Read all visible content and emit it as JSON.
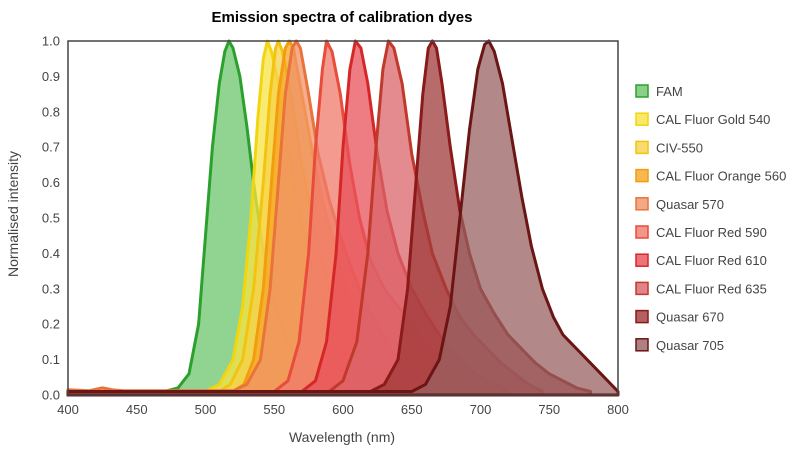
{
  "chart_data": {
    "type": "area",
    "title": "Emission spectra of calibration dyes",
    "xlabel": "Wavelength (nm)",
    "ylabel": "Normalised intensity",
    "xlim": [
      400,
      800
    ],
    "ylim": [
      0,
      1.0
    ],
    "xticks": [
      "400",
      "450",
      "500",
      "550",
      "600",
      "650",
      "700",
      "750",
      "800"
    ],
    "yticks": [
      "0.0",
      "0.1",
      "0.2",
      "0.3",
      "0.4",
      "0.5",
      "0.6",
      "0.7",
      "0.8",
      "0.9",
      "1.0"
    ],
    "grid": false,
    "legend_position": "right",
    "series": [
      {
        "name": "FAM",
        "stroke": "#2ca02c",
        "fill": "#6cc56c",
        "points": [
          [
            400,
            0.01
          ],
          [
            470,
            0.01
          ],
          [
            480,
            0.02
          ],
          [
            488,
            0.06
          ],
          [
            495,
            0.2
          ],
          [
            500,
            0.45
          ],
          [
            505,
            0.7
          ],
          [
            510,
            0.88
          ],
          [
            514,
            0.97
          ],
          [
            517,
            1.0
          ],
          [
            520,
            0.98
          ],
          [
            525,
            0.9
          ],
          [
            530,
            0.76
          ],
          [
            535,
            0.6
          ],
          [
            540,
            0.46
          ],
          [
            545,
            0.34
          ],
          [
            550,
            0.26
          ],
          [
            555,
            0.2
          ],
          [
            560,
            0.15
          ],
          [
            570,
            0.09
          ],
          [
            580,
            0.05
          ],
          [
            590,
            0.03
          ],
          [
            600,
            0.01
          ]
        ]
      },
      {
        "name": "CAL Fluor Gold 540",
        "stroke": "#f2d50f",
        "fill": "#f7e443",
        "points": [
          [
            400,
            0.01
          ],
          [
            500,
            0.01
          ],
          [
            510,
            0.03
          ],
          [
            520,
            0.1
          ],
          [
            527,
            0.25
          ],
          [
            533,
            0.5
          ],
          [
            538,
            0.78
          ],
          [
            542,
            0.95
          ],
          [
            545,
            1.0
          ],
          [
            548,
            0.97
          ],
          [
            553,
            0.88
          ],
          [
            560,
            0.7
          ],
          [
            570,
            0.48
          ],
          [
            580,
            0.33
          ],
          [
            590,
            0.23
          ],
          [
            600,
            0.16
          ],
          [
            610,
            0.11
          ],
          [
            620,
            0.07
          ],
          [
            630,
            0.04
          ],
          [
            640,
            0.02
          ],
          [
            650,
            0.01
          ]
        ]
      },
      {
        "name": "CIV-550",
        "stroke": "#f2c40f",
        "fill": "#f5d24a",
        "points": [
          [
            400,
            0.01
          ],
          [
            510,
            0.01
          ],
          [
            518,
            0.03
          ],
          [
            527,
            0.1
          ],
          [
            535,
            0.3
          ],
          [
            542,
            0.6
          ],
          [
            547,
            0.85
          ],
          [
            551,
            0.98
          ],
          [
            553,
            1.0
          ],
          [
            556,
            0.97
          ],
          [
            562,
            0.85
          ],
          [
            570,
            0.65
          ],
          [
            580,
            0.45
          ],
          [
            590,
            0.3
          ],
          [
            600,
            0.19
          ],
          [
            610,
            0.12
          ],
          [
            620,
            0.08
          ],
          [
            630,
            0.05
          ],
          [
            640,
            0.02
          ],
          [
            650,
            0.01
          ]
        ]
      },
      {
        "name": "CAL Fluor Orange 560",
        "stroke": "#f39c12",
        "fill": "#f5a623",
        "points": [
          [
            400,
            0.01
          ],
          [
            520,
            0.01
          ],
          [
            528,
            0.03
          ],
          [
            535,
            0.1
          ],
          [
            542,
            0.3
          ],
          [
            548,
            0.6
          ],
          [
            553,
            0.85
          ],
          [
            558,
            0.98
          ],
          [
            561,
            1.0
          ],
          [
            564,
            0.98
          ],
          [
            570,
            0.85
          ],
          [
            578,
            0.68
          ],
          [
            585,
            0.55
          ],
          [
            592,
            0.45
          ],
          [
            600,
            0.33
          ],
          [
            610,
            0.2
          ],
          [
            620,
            0.12
          ],
          [
            630,
            0.07
          ],
          [
            640,
            0.04
          ],
          [
            650,
            0.01
          ]
        ]
      },
      {
        "name": "Quasar 570",
        "stroke": "#e8743b",
        "fill": "#f0926a",
        "points": [
          [
            400,
            0.015
          ],
          [
            415,
            0.012
          ],
          [
            425,
            0.02
          ],
          [
            432,
            0.015
          ],
          [
            440,
            0.012
          ],
          [
            520,
            0.012
          ],
          [
            530,
            0.03
          ],
          [
            540,
            0.1
          ],
          [
            547,
            0.3
          ],
          [
            553,
            0.6
          ],
          [
            558,
            0.85
          ],
          [
            563,
            0.98
          ],
          [
            566,
            1.0
          ],
          [
            569,
            0.98
          ],
          [
            575,
            0.85
          ],
          [
            582,
            0.68
          ],
          [
            590,
            0.55
          ],
          [
            598,
            0.45
          ],
          [
            605,
            0.37
          ],
          [
            612,
            0.3
          ],
          [
            620,
            0.23
          ],
          [
            630,
            0.16
          ],
          [
            640,
            0.1
          ],
          [
            650,
            0.06
          ],
          [
            660,
            0.03
          ],
          [
            670,
            0.01
          ]
        ]
      },
      {
        "name": "CAL Fluor Red 590",
        "stroke": "#e74c3c",
        "fill": "#f07a6a",
        "points": [
          [
            400,
            0.01
          ],
          [
            550,
            0.01
          ],
          [
            560,
            0.04
          ],
          [
            568,
            0.15
          ],
          [
            575,
            0.4
          ],
          [
            580,
            0.7
          ],
          [
            585,
            0.92
          ],
          [
            588,
            1.0
          ],
          [
            592,
            0.97
          ],
          [
            598,
            0.85
          ],
          [
            605,
            0.65
          ],
          [
            612,
            0.5
          ],
          [
            620,
            0.38
          ],
          [
            630,
            0.3
          ],
          [
            640,
            0.25
          ],
          [
            650,
            0.2
          ],
          [
            660,
            0.15
          ],
          [
            670,
            0.11
          ],
          [
            680,
            0.08
          ],
          [
            690,
            0.05
          ],
          [
            700,
            0.03
          ],
          [
            710,
            0.01
          ]
        ]
      },
      {
        "name": "CAL Fluor Red 610",
        "stroke": "#d62728",
        "fill": "#e8505a",
        "points": [
          [
            400,
            0.01
          ],
          [
            570,
            0.01
          ],
          [
            580,
            0.04
          ],
          [
            588,
            0.15
          ],
          [
            595,
            0.4
          ],
          [
            600,
            0.7
          ],
          [
            605,
            0.92
          ],
          [
            609,
            1.0
          ],
          [
            613,
            0.98
          ],
          [
            618,
            0.88
          ],
          [
            625,
            0.68
          ],
          [
            632,
            0.52
          ],
          [
            640,
            0.4
          ],
          [
            650,
            0.3
          ],
          [
            660,
            0.23
          ],
          [
            670,
            0.17
          ],
          [
            680,
            0.12
          ],
          [
            690,
            0.08
          ],
          [
            700,
            0.05
          ],
          [
            710,
            0.03
          ],
          [
            720,
            0.01
          ]
        ]
      },
      {
        "name": "CAL Fluor Red 635",
        "stroke": "#c0392b",
        "fill": "#d9646a",
        "points": [
          [
            400,
            0.01
          ],
          [
            590,
            0.01
          ],
          [
            600,
            0.04
          ],
          [
            610,
            0.15
          ],
          [
            618,
            0.4
          ],
          [
            624,
            0.7
          ],
          [
            629,
            0.92
          ],
          [
            633,
            1.0
          ],
          [
            637,
            0.98
          ],
          [
            643,
            0.88
          ],
          [
            650,
            0.68
          ],
          [
            658,
            0.52
          ],
          [
            665,
            0.4
          ],
          [
            675,
            0.3
          ],
          [
            685,
            0.22
          ],
          [
            695,
            0.17
          ],
          [
            705,
            0.13
          ],
          [
            715,
            0.09
          ],
          [
            725,
            0.06
          ],
          [
            735,
            0.03
          ],
          [
            745,
            0.01
          ]
        ]
      },
      {
        "name": "Quasar 670",
        "stroke": "#8b1a1a",
        "fill": "#a03a3a",
        "points": [
          [
            400,
            0.01
          ],
          [
            620,
            0.01
          ],
          [
            630,
            0.03
          ],
          [
            640,
            0.1
          ],
          [
            647,
            0.3
          ],
          [
            653,
            0.6
          ],
          [
            658,
            0.85
          ],
          [
            662,
            0.98
          ],
          [
            665,
            1.0
          ],
          [
            668,
            0.98
          ],
          [
            672,
            0.88
          ],
          [
            678,
            0.7
          ],
          [
            685,
            0.52
          ],
          [
            692,
            0.4
          ],
          [
            700,
            0.3
          ],
          [
            710,
            0.23
          ],
          [
            720,
            0.17
          ],
          [
            730,
            0.13
          ],
          [
            740,
            0.09
          ],
          [
            750,
            0.06
          ],
          [
            760,
            0.04
          ],
          [
            770,
            0.02
          ],
          [
            780,
            0.01
          ]
        ]
      },
      {
        "name": "Quasar 705",
        "stroke": "#6b1515",
        "fill": "#9a6060",
        "points": [
          [
            400,
            0.01
          ],
          [
            650,
            0.01
          ],
          [
            660,
            0.03
          ],
          [
            670,
            0.1
          ],
          [
            678,
            0.25
          ],
          [
            685,
            0.5
          ],
          [
            692,
            0.75
          ],
          [
            698,
            0.92
          ],
          [
            703,
            0.99
          ],
          [
            706,
            1.0
          ],
          [
            710,
            0.97
          ],
          [
            716,
            0.88
          ],
          [
            723,
            0.72
          ],
          [
            730,
            0.56
          ],
          [
            737,
            0.42
          ],
          [
            745,
            0.3
          ],
          [
            753,
            0.22
          ],
          [
            760,
            0.17
          ],
          [
            770,
            0.13
          ],
          [
            780,
            0.09
          ],
          [
            790,
            0.05
          ],
          [
            800,
            0.01
          ]
        ]
      }
    ]
  }
}
